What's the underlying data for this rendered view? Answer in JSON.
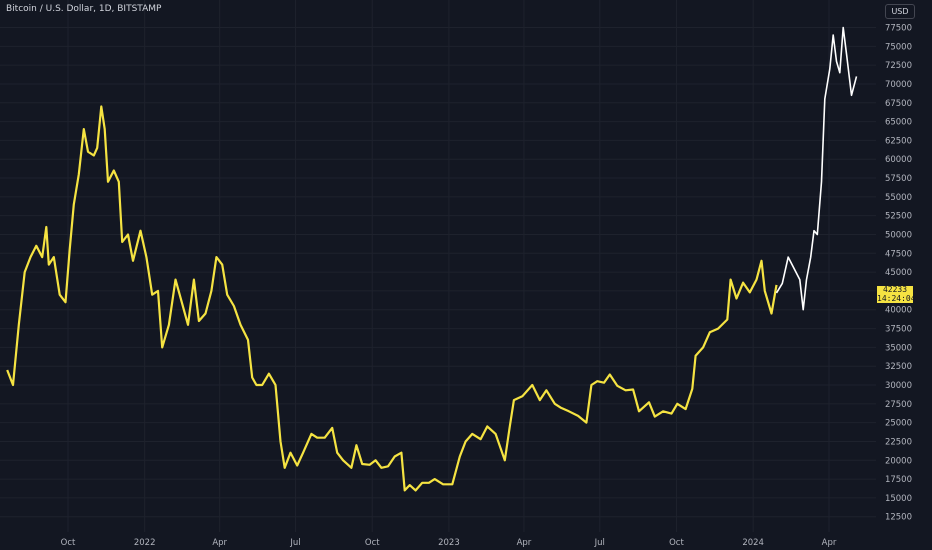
{
  "title": "Bitcoin / U.S. Dollar, 1D, BITSTAMP",
  "currency": "USD",
  "price_label": {
    "price": "42233",
    "countdown": "14:24:04"
  },
  "colors": {
    "background": "#131722",
    "grid": "#1e222d",
    "history_line": "#f5e342",
    "recent_line": "#ffffff",
    "axis_text": "#b2b5be"
  },
  "chart_data": {
    "type": "line",
    "title": "Bitcoin / U.S. Dollar, 1D, BITSTAMP",
    "ylim": [
      11000,
      78500
    ],
    "y_ticks": [
      12500,
      15000,
      17500,
      20000,
      22500,
      25000,
      27500,
      30000,
      32500,
      35000,
      37500,
      40000,
      42500,
      45000,
      47500,
      50000,
      52500,
      55000,
      57500,
      60000,
      62500,
      65000,
      67500,
      70000,
      72500,
      75000,
      77500
    ],
    "x_ticks": [
      {
        "label": "Oct",
        "date": "2021-10-01"
      },
      {
        "label": "2022",
        "date": "2022-01-01"
      },
      {
        "label": "Apr",
        "date": "2022-04-01"
      },
      {
        "label": "Jul",
        "date": "2022-07-01"
      },
      {
        "label": "Oct",
        "date": "2022-10-01"
      },
      {
        "label": "2023",
        "date": "2023-01-01"
      },
      {
        "label": "Apr",
        "date": "2023-04-01"
      },
      {
        "label": "Jul",
        "date": "2023-07-01"
      },
      {
        "label": "Oct",
        "date": "2023-10-01"
      },
      {
        "label": "2024",
        "date": "2024-01-01"
      },
      {
        "label": "Apr",
        "date": "2024-04-01"
      }
    ],
    "grid": true,
    "series": [
      {
        "color": "#f5e342",
        "points": [
          [
            "2021-07-20",
            32000
          ],
          [
            "2021-07-27",
            30000
          ],
          [
            "2021-08-03",
            38000
          ],
          [
            "2021-08-10",
            45000
          ],
          [
            "2021-08-17",
            47000
          ],
          [
            "2021-08-24",
            48500
          ],
          [
            "2021-08-31",
            47000
          ],
          [
            "2021-09-05",
            51000
          ],
          [
            "2021-09-08",
            46000
          ],
          [
            "2021-09-14",
            47000
          ],
          [
            "2021-09-21",
            42000
          ],
          [
            "2021-09-28",
            41000
          ],
          [
            "2021-10-03",
            48000
          ],
          [
            "2021-10-08",
            54000
          ],
          [
            "2021-10-14",
            58000
          ],
          [
            "2021-10-20",
            64000
          ],
          [
            "2021-10-25",
            61000
          ],
          [
            "2021-11-01",
            60500
          ],
          [
            "2021-11-05",
            61500
          ],
          [
            "2021-11-10",
            67000
          ],
          [
            "2021-11-14",
            64000
          ],
          [
            "2021-11-18",
            57000
          ],
          [
            "2021-11-25",
            58500
          ],
          [
            "2021-12-01",
            57000
          ],
          [
            "2021-12-05",
            49000
          ],
          [
            "2021-12-12",
            50000
          ],
          [
            "2021-12-18",
            46500
          ],
          [
            "2021-12-27",
            50500
          ],
          [
            "2022-01-03",
            47000
          ],
          [
            "2022-01-10",
            42000
          ],
          [
            "2022-01-17",
            42500
          ],
          [
            "2022-01-22",
            35000
          ],
          [
            "2022-01-30",
            38000
          ],
          [
            "2022-02-07",
            44000
          ],
          [
            "2022-02-12",
            42000
          ],
          [
            "2022-02-22",
            38000
          ],
          [
            "2022-03-01",
            44000
          ],
          [
            "2022-03-07",
            38500
          ],
          [
            "2022-03-15",
            39500
          ],
          [
            "2022-03-22",
            42500
          ],
          [
            "2022-03-28",
            47000
          ],
          [
            "2022-04-04",
            46000
          ],
          [
            "2022-04-10",
            42000
          ],
          [
            "2022-04-18",
            40500
          ],
          [
            "2022-04-26",
            38000
          ],
          [
            "2022-05-05",
            36000
          ],
          [
            "2022-05-10",
            31000
          ],
          [
            "2022-05-15",
            30000
          ],
          [
            "2022-05-22",
            30000
          ],
          [
            "2022-05-30",
            31500
          ],
          [
            "2022-06-07",
            30000
          ],
          [
            "2022-06-13",
            22500
          ],
          [
            "2022-06-18",
            19000
          ],
          [
            "2022-06-25",
            21000
          ],
          [
            "2022-07-03",
            19300
          ],
          [
            "2022-07-10",
            21000
          ],
          [
            "2022-07-20",
            23500
          ],
          [
            "2022-07-27",
            23000
          ],
          [
            "2022-08-05",
            23000
          ],
          [
            "2022-08-14",
            24300
          ],
          [
            "2022-08-20",
            21000
          ],
          [
            "2022-08-27",
            20000
          ],
          [
            "2022-09-06",
            19000
          ],
          [
            "2022-09-12",
            22000
          ],
          [
            "2022-09-19",
            19500
          ],
          [
            "2022-09-28",
            19400
          ],
          [
            "2022-10-05",
            20000
          ],
          [
            "2022-10-12",
            19000
          ],
          [
            "2022-10-20",
            19200
          ],
          [
            "2022-10-28",
            20500
          ],
          [
            "2022-11-05",
            21000
          ],
          [
            "2022-11-09",
            16000
          ],
          [
            "2022-11-15",
            16700
          ],
          [
            "2022-11-22",
            16000
          ],
          [
            "2022-11-30",
            17000
          ],
          [
            "2022-12-08",
            17000
          ],
          [
            "2022-12-15",
            17500
          ],
          [
            "2022-12-25",
            16800
          ],
          [
            "2023-01-05",
            16800
          ],
          [
            "2023-01-14",
            20500
          ],
          [
            "2023-01-21",
            22500
          ],
          [
            "2023-01-29",
            23500
          ],
          [
            "2023-02-08",
            22800
          ],
          [
            "2023-02-16",
            24500
          ],
          [
            "2023-02-26",
            23500
          ],
          [
            "2023-03-09",
            20000
          ],
          [
            "2023-03-15",
            24500
          ],
          [
            "2023-03-20",
            28000
          ],
          [
            "2023-03-30",
            28500
          ],
          [
            "2023-04-11",
            30000
          ],
          [
            "2023-04-20",
            28000
          ],
          [
            "2023-04-28",
            29300
          ],
          [
            "2023-05-08",
            27500
          ],
          [
            "2023-05-15",
            27000
          ],
          [
            "2023-05-25",
            26500
          ],
          [
            "2023-06-05",
            25900
          ],
          [
            "2023-06-15",
            25000
          ],
          [
            "2023-06-21",
            30000
          ],
          [
            "2023-06-28",
            30500
          ],
          [
            "2023-07-06",
            30300
          ],
          [
            "2023-07-13",
            31400
          ],
          [
            "2023-07-22",
            29900
          ],
          [
            "2023-08-01",
            29300
          ],
          [
            "2023-08-10",
            29400
          ],
          [
            "2023-08-17",
            26500
          ],
          [
            "2023-08-29",
            27700
          ],
          [
            "2023-09-05",
            25800
          ],
          [
            "2023-09-15",
            26500
          ],
          [
            "2023-09-25",
            26200
          ],
          [
            "2023-10-02",
            27500
          ],
          [
            "2023-10-12",
            26800
          ],
          [
            "2023-10-20",
            29500
          ],
          [
            "2023-10-24",
            33900
          ],
          [
            "2023-11-02",
            35000
          ],
          [
            "2023-11-10",
            37000
          ],
          [
            "2023-11-20",
            37500
          ],
          [
            "2023-12-01",
            38700
          ],
          [
            "2023-12-05",
            44000
          ],
          [
            "2023-12-12",
            41500
          ],
          [
            "2023-12-20",
            43600
          ],
          [
            "2023-12-28",
            42300
          ],
          [
            "2024-01-05",
            44000
          ],
          [
            "2024-01-11",
            46500
          ],
          [
            "2024-01-15",
            42500
          ],
          [
            "2024-01-23",
            39500
          ],
          [
            "2024-01-29",
            43300
          ]
        ]
      },
      {
        "color": "#ffffff",
        "points": [
          [
            "2024-01-29",
            42233
          ],
          [
            "2024-02-05",
            43500
          ],
          [
            "2024-02-12",
            47000
          ],
          [
            "2024-02-19",
            45500
          ],
          [
            "2024-02-26",
            44000
          ],
          [
            "2024-03-01",
            40000
          ],
          [
            "2024-03-05",
            44000
          ],
          [
            "2024-03-10",
            47000
          ],
          [
            "2024-03-14",
            50500
          ],
          [
            "2024-03-18",
            50000
          ],
          [
            "2024-03-23",
            57000
          ],
          [
            "2024-03-27",
            68000
          ],
          [
            "2024-04-02",
            72000
          ],
          [
            "2024-04-06",
            76500
          ],
          [
            "2024-04-10",
            73000
          ],
          [
            "2024-04-14",
            71500
          ],
          [
            "2024-04-18",
            77500
          ],
          [
            "2024-04-22",
            74000
          ],
          [
            "2024-04-28",
            68500
          ],
          [
            "2024-05-04",
            71000
          ]
        ]
      }
    ]
  }
}
